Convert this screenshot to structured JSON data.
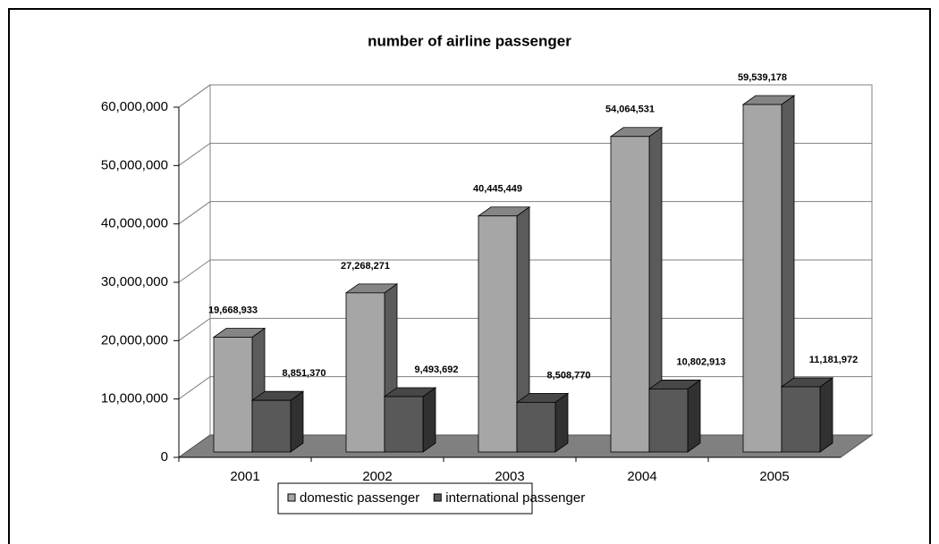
{
  "chart_data": {
    "type": "bar",
    "title": "number of airline passenger",
    "categories": [
      "2001",
      "2002",
      "2003",
      "2004",
      "2005"
    ],
    "series": [
      {
        "name": "domestic passenger",
        "color": "#a6a6a6",
        "values": [
          19668933,
          27268271,
          40445449,
          54064531,
          59539178
        ],
        "value_labels": [
          "19,668,933",
          "27,268,271",
          "40,445,449",
          "54,064,531",
          "59,539,178"
        ]
      },
      {
        "name": "international passenger",
        "color": "#595959",
        "values": [
          8851370,
          9493692,
          8508770,
          10802913,
          11181972
        ],
        "value_labels": [
          "8,851,370",
          "9,493,692",
          "8,508,770",
          "10,802,913",
          "11,181,972"
        ]
      }
    ],
    "ylim": [
      0,
      60000000
    ],
    "yticks": [
      0,
      {
        "value": 10000000,
        "label": "10,000,000"
      },
      {
        "value": 20000000,
        "label": "20,000,000"
      },
      {
        "value": 30000000,
        "label": "30,000,000"
      },
      {
        "value": 40000000,
        "label": "40,000,000"
      },
      {
        "value": 50000000,
        "label": "50,000,000"
      },
      {
        "value": 60000000,
        "label": "60,000,000"
      }
    ],
    "grid": true,
    "legend": "bottom"
  }
}
